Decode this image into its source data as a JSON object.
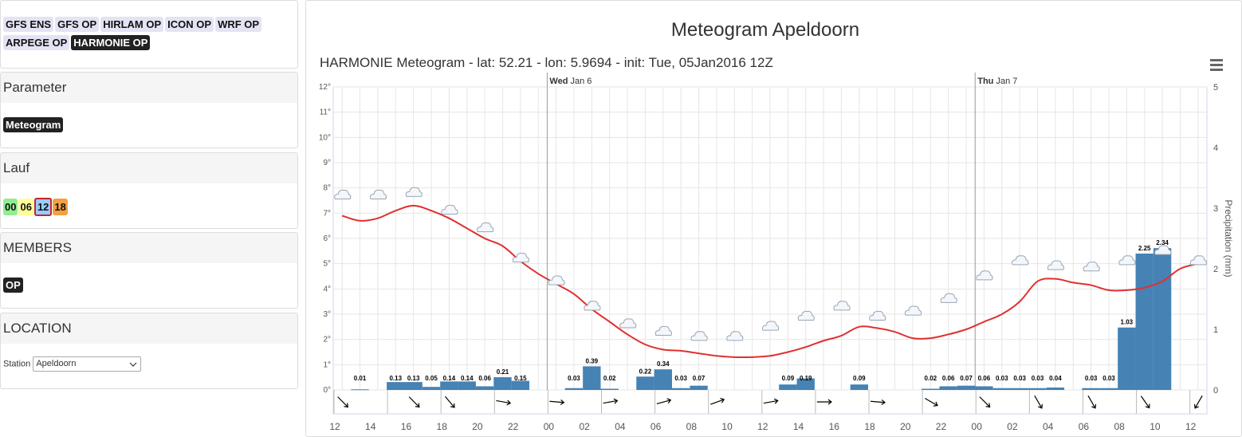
{
  "models": {
    "items": [
      {
        "label": "GFS ENS",
        "active": false
      },
      {
        "label": "GFS OP",
        "active": false
      },
      {
        "label": "HIRLAM OP",
        "active": false
      },
      {
        "label": "ICON OP",
        "active": false
      },
      {
        "label": "WRF OP",
        "active": false
      },
      {
        "label": "ARPEGE OP",
        "active": false
      },
      {
        "label": "HARMONIE OP",
        "active": true
      }
    ]
  },
  "parameter": {
    "header": "Parameter",
    "value": "Meteogram"
  },
  "lauf": {
    "header": "Lauf",
    "runs": [
      {
        "label": "00",
        "color": "#90ee90"
      },
      {
        "label": "06",
        "color": "#ffff99"
      },
      {
        "label": "12",
        "color": "#99ccff",
        "selected": true
      },
      {
        "label": "18",
        "color": "#f4a040"
      }
    ]
  },
  "members": {
    "header": "MEMBERS",
    "value": "OP"
  },
  "location": {
    "header": "LOCATION",
    "station_label": "Station",
    "station_value": "Apeldoorn"
  },
  "chart_data": {
    "type": "line",
    "title": "Meteogram Apeldoorn",
    "subtitle": "HARMONIE Meteogram - lat: 52.21 - lon: 5.9694 - init: Tue, 05Jan2016 12Z",
    "y_left": {
      "ticks": [
        "0°",
        "1°",
        "2°",
        "3°",
        "4°",
        "5°",
        "6°",
        "7°",
        "8°",
        "9°",
        "10°",
        "11°",
        "12°"
      ],
      "range": [
        0,
        12
      ]
    },
    "y_right": {
      "label": "Precipitation (mm)",
      "ticks": [
        "0",
        "1",
        "2",
        "3",
        "4",
        "5"
      ],
      "range": [
        0,
        5
      ]
    },
    "day_labels": [
      {
        "hour": 12,
        "bold": "Wed",
        "rest": "Jan 6"
      },
      {
        "hour": 36,
        "bold": "Thu",
        "rest": "Jan 7"
      }
    ],
    "x_tick_labels": [
      "12",
      "14",
      "16",
      "18",
      "20",
      "22",
      "00",
      "02",
      "04",
      "06",
      "08",
      "10",
      "12",
      "14",
      "16",
      "18",
      "20",
      "22",
      "00",
      "02",
      "04",
      "06",
      "08",
      "10",
      "12"
    ],
    "series": [
      {
        "name": "Temperature",
        "color": "#e03030",
        "x": [
          0,
          1,
          2,
          3,
          4,
          5,
          6,
          7,
          8,
          9,
          10,
          11,
          12,
          13,
          14,
          15,
          16,
          17,
          18,
          19,
          20,
          21,
          22,
          23,
          24,
          25,
          26,
          27,
          28,
          29,
          30,
          31,
          32,
          33,
          34,
          35,
          36,
          37,
          38,
          39,
          40,
          41,
          42,
          43,
          44,
          45,
          46,
          47,
          48
        ],
        "values": [
          6.9,
          6.7,
          6.8,
          7.1,
          7.3,
          7.1,
          6.8,
          6.4,
          6.0,
          5.7,
          5.1,
          4.6,
          4.2,
          3.8,
          3.2,
          2.7,
          2.2,
          1.8,
          1.6,
          1.55,
          1.45,
          1.35,
          1.3,
          1.3,
          1.35,
          1.5,
          1.7,
          1.95,
          2.15,
          2.5,
          2.45,
          2.3,
          2.05,
          2.05,
          2.2,
          2.4,
          2.7,
          3.0,
          3.5,
          4.3,
          4.4,
          4.25,
          4.15,
          3.95,
          3.95,
          4.05,
          4.3,
          4.8,
          5.0
        ]
      },
      {
        "name": "Precipitation",
        "color": "#4682b4",
        "hours": [
          1,
          3,
          4,
          5,
          6,
          7,
          8,
          9,
          10,
          11,
          13,
          14,
          15,
          17,
          18,
          19,
          20,
          25,
          26,
          29,
          33,
          34,
          35,
          36,
          37,
          38,
          39,
          40,
          42,
          43,
          44,
          45,
          46,
          47
        ],
        "values": [
          0.01,
          0.13,
          0.13,
          0.05,
          0.14,
          0.14,
          0.06,
          0.21,
          0.15,
          0.0,
          0.03,
          0.39,
          0.02,
          0.22,
          0.34,
          0.03,
          0.07,
          0.09,
          0.19,
          0.09,
          0.02,
          0.06,
          0.07,
          0.06,
          0.03,
          0.03,
          0.03,
          0.04,
          0.03,
          0.03,
          1.03,
          2.25,
          2.34,
          0.0
        ],
        "labels": [
          "0.01",
          "0.13",
          "0.13",
          "0.05",
          "0.14",
          "0.14",
          "0.06",
          "0.21",
          "0.15",
          "",
          "0.03",
          "0.39",
          "0.02",
          "0.22",
          "0.34",
          "0.03",
          "0.07",
          "0.09",
          "0.19",
          "0.09",
          "0.02",
          "0.06",
          "0.07",
          "0.06",
          "0.03",
          "0.03",
          "0.03",
          "0.04",
          "0.03",
          "0.03",
          "1.03",
          "2.25",
          "2.34",
          ""
        ]
      }
    ],
    "cloud_icons": [
      {
        "h": 0,
        "t": 7.5
      },
      {
        "h": 2,
        "t": 7.5
      },
      {
        "h": 4,
        "t": 7.6
      },
      {
        "h": 6,
        "t": 6.9
      },
      {
        "h": 8,
        "t": 6.2
      },
      {
        "h": 10,
        "t": 5.0
      },
      {
        "h": 12,
        "t": 4.1
      },
      {
        "h": 14,
        "t": 3.1
      },
      {
        "h": 16,
        "t": 2.4
      },
      {
        "h": 18,
        "t": 2.1
      },
      {
        "h": 20,
        "t": 1.9
      },
      {
        "h": 22,
        "t": 1.9
      },
      {
        "h": 24,
        "t": 2.3
      },
      {
        "h": 26,
        "t": 2.7
      },
      {
        "h": 28,
        "t": 3.1
      },
      {
        "h": 30,
        "t": 2.7
      },
      {
        "h": 32,
        "t": 2.9
      },
      {
        "h": 34,
        "t": 3.4
      },
      {
        "h": 36,
        "t": 4.3
      },
      {
        "h": 38,
        "t": 4.9
      },
      {
        "h": 40,
        "t": 4.7
      },
      {
        "h": 42,
        "t": 4.65
      },
      {
        "h": 44,
        "t": 4.9
      },
      {
        "h": 46,
        "t": 5.3
      },
      {
        "h": 48,
        "t": 4.9
      }
    ],
    "wind_arrows": [
      {
        "h": 0,
        "a": 135
      },
      {
        "h": 4,
        "a": 135
      },
      {
        "h": 6,
        "a": 140
      },
      {
        "h": 9,
        "a": 100
      },
      {
        "h": 12,
        "a": 95
      },
      {
        "h": 15,
        "a": 80
      },
      {
        "h": 18,
        "a": 75
      },
      {
        "h": 21,
        "a": 70
      },
      {
        "h": 24,
        "a": 80
      },
      {
        "h": 27,
        "a": 90
      },
      {
        "h": 30,
        "a": 95
      },
      {
        "h": 33,
        "a": 120
      },
      {
        "h": 36,
        "a": 135
      },
      {
        "h": 39,
        "a": 150
      },
      {
        "h": 42,
        "a": 150
      },
      {
        "h": 45,
        "a": 145
      },
      {
        "h": 48,
        "a": 210
      }
    ],
    "grid": true,
    "legend": "none"
  },
  "colors": {
    "accent": "#222222",
    "temp": "#e03030",
    "precip": "#4682b4"
  }
}
